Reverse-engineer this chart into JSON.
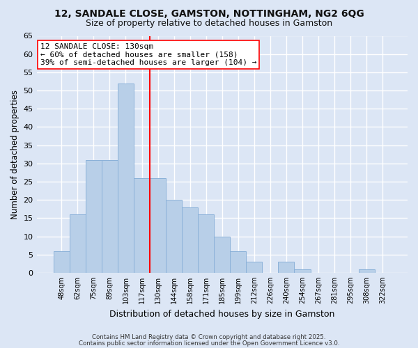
{
  "title_line1": "12, SANDALE CLOSE, GAMSTON, NOTTINGHAM, NG2 6QG",
  "title_line2": "Size of property relative to detached houses in Gamston",
  "xlabel": "Distribution of detached houses by size in Gamston",
  "ylabel": "Number of detached properties",
  "bar_labels": [
    "48sqm",
    "62sqm",
    "75sqm",
    "89sqm",
    "103sqm",
    "117sqm",
    "130sqm",
    "144sqm",
    "158sqm",
    "171sqm",
    "185sqm",
    "199sqm",
    "212sqm",
    "226sqm",
    "240sqm",
    "254sqm",
    "267sqm",
    "281sqm",
    "295sqm",
    "308sqm",
    "322sqm"
  ],
  "bar_values": [
    6,
    16,
    31,
    31,
    52,
    26,
    26,
    20,
    18,
    16,
    10,
    6,
    3,
    0,
    3,
    1,
    0,
    0,
    0,
    1,
    0
  ],
  "bar_color": "#b8cfe8",
  "bar_edge_color": "#8ab0d8",
  "vline_pos": 5.5,
  "vline_color": "red",
  "vline_linewidth": 1.5,
  "ylim": [
    0,
    65
  ],
  "yticks": [
    0,
    5,
    10,
    15,
    20,
    25,
    30,
    35,
    40,
    45,
    50,
    55,
    60,
    65
  ],
  "annotation_title": "12 SANDALE CLOSE: 130sqm",
  "annotation_line1": "← 60% of detached houses are smaller (158)",
  "annotation_line2": "39% of semi-detached houses are larger (104) →",
  "annotation_box_facecolor": "#ffffff",
  "annotation_box_edgecolor": "red",
  "annotation_fontsize": 8,
  "background_color": "#dce6f5",
  "grid_color": "#ffffff",
  "footer_line1": "Contains HM Land Registry data © Crown copyright and database right 2025.",
  "footer_line2": "Contains public sector information licensed under the Open Government Licence v3.0.",
  "title_fontsize": 10,
  "subtitle_fontsize": 9,
  "ylabel_fontsize": 8.5,
  "xlabel_fontsize": 9
}
